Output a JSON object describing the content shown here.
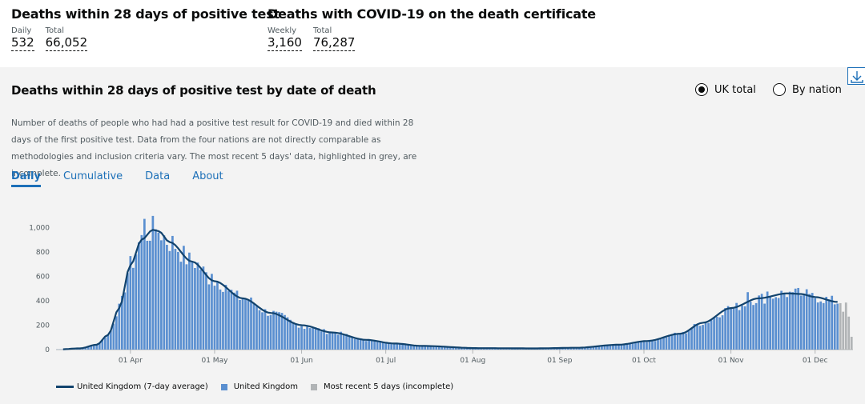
{
  "headline": {
    "left": {
      "title": "Deaths within 28 days of positive test",
      "metrics": [
        {
          "label": "Daily",
          "value": "532"
        },
        {
          "label": "Total",
          "value": "66,052"
        }
      ]
    },
    "right": {
      "title": "Deaths with COVID-19 on the death certificate",
      "metrics": [
        {
          "label": "Weekly",
          "value": "3,160"
        },
        {
          "label": "Total",
          "value": "76,287"
        }
      ]
    }
  },
  "card": {
    "title": "Deaths within 28 days of positive test by date of death",
    "radio_uk": "UK total",
    "radio_nation": "By nation",
    "description": "Number of deaths of people who had had a positive test result for COVID-19 and died within 28 days of the first positive test. Data from the four nations are not directly comparable as methodologies and inclusion criteria vary. The most recent 5 days' data, highlighted in grey, are incomplete.",
    "tabs": [
      "Daily",
      "Cumulative",
      "Data",
      "About"
    ],
    "active_tab": "Daily"
  },
  "colors": {
    "bar": "#5a8fd0",
    "bar_incomplete": "#b1b4b6",
    "line": "#12436d",
    "link": "#1d70b8"
  },
  "icons": {
    "download": "download-icon"
  },
  "chart_data": {
    "type": "bar",
    "title": "Deaths within 28 days of positive test by date of death",
    "start_date": "2020-03-06",
    "end_date": "2020-12-14",
    "xlabel": "",
    "ylabel": "",
    "ylim": [
      0,
      1100
    ],
    "yticks": [
      0,
      200,
      400,
      600,
      800,
      1000
    ],
    "ytick_labels": [
      "0",
      "200",
      "400",
      "600",
      "800",
      "1,000"
    ],
    "xtick_labels": [
      "01 Apr",
      "01 May",
      "01 Jun",
      "01 Jul",
      "01 Aug",
      "01 Sep",
      "01 Oct",
      "01 Nov",
      "01 Dec"
    ],
    "xtick_day_index": [
      26,
      56,
      87,
      117,
      148,
      179,
      209,
      240,
      270
    ],
    "anchor_points": [
      [
        0,
        1
      ],
      [
        8,
        10
      ],
      [
        14,
        40
      ],
      [
        18,
        120
      ],
      [
        22,
        340
      ],
      [
        26,
        690
      ],
      [
        30,
        900
      ],
      [
        34,
        980
      ],
      [
        36,
        970
      ],
      [
        40,
        880
      ],
      [
        48,
        720
      ],
      [
        56,
        560
      ],
      [
        66,
        420
      ],
      [
        76,
        300
      ],
      [
        87,
        200
      ],
      [
        98,
        140
      ],
      [
        110,
        80
      ],
      [
        120,
        50
      ],
      [
        130,
        30
      ],
      [
        150,
        12
      ],
      [
        170,
        10
      ],
      [
        185,
        15
      ],
      [
        200,
        40
      ],
      [
        210,
        70
      ],
      [
        222,
        130
      ],
      [
        230,
        220
      ],
      [
        240,
        340
      ],
      [
        250,
        420
      ],
      [
        260,
        460
      ],
      [
        265,
        455
      ],
      [
        270,
        430
      ],
      [
        278,
        390
      ],
      [
        283,
        360
      ]
    ],
    "spikes": [
      [
        31,
        1070
      ],
      [
        35,
        985
      ],
      [
        55,
        620
      ],
      [
        60,
        530
      ],
      [
        78,
        310
      ],
      [
        88,
        170
      ],
      [
        206,
        55
      ],
      [
        238,
        340
      ],
      [
        246,
        470
      ],
      [
        253,
        475
      ],
      [
        262,
        470
      ],
      [
        266,
        450
      ],
      [
        268,
        455
      ]
    ],
    "incomplete_last_days": [
      380,
      310,
      385,
      270,
      105
    ],
    "series": [
      {
        "name": "United Kingdom (7-day average)",
        "kind": "line"
      },
      {
        "name": "United Kingdom",
        "kind": "bar"
      },
      {
        "name": "Most recent 5 days (incomplete)",
        "kind": "bar"
      }
    ],
    "legend": {
      "position": "bottom-left"
    }
  }
}
